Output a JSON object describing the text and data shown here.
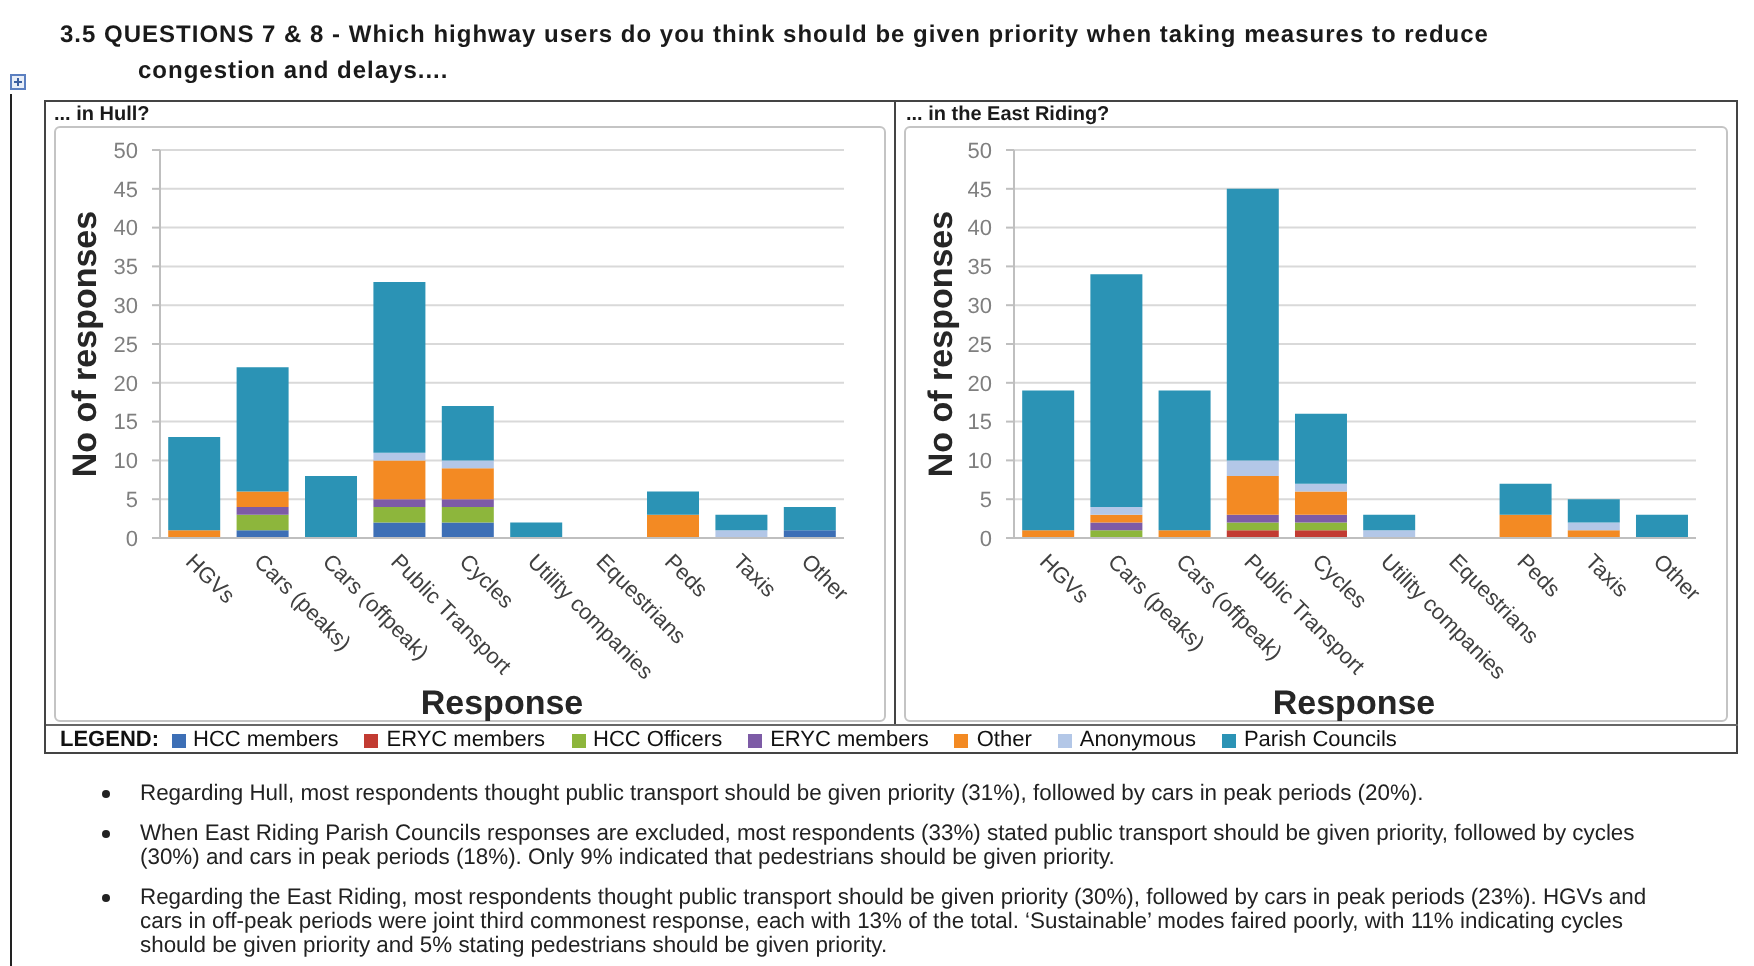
{
  "chart_data": [
    {
      "type": "other",
      "title": "3.5 QUESTIONS 7 & 8 - Which highway users do you think should be given priority when taking measures to reduce congestion and delays...."
    },
    {
      "type": "bar",
      "title": "... in Hull?",
      "xlabel": "Response",
      "ylabel": "No of responses",
      "categories": [
        "HGVs",
        "Cars (peaks)",
        "Cars (offpeak)",
        "Public Transport",
        "Cycles",
        "Utility companies",
        "Equestrians",
        "Peds",
        "Taxis",
        "Other"
      ],
      "stacked": true,
      "ylim": [
        0,
        50
      ],
      "yticks": [
        0,
        5,
        10,
        15,
        20,
        25,
        30,
        35,
        40,
        45,
        50
      ],
      "grid": "y",
      "legend": "bottom",
      "legend_title": "LEGEND:",
      "series": [
        {
          "name": "HCC members",
          "color": "#3d6fb6",
          "values": [
            0,
            1,
            0,
            2,
            2,
            0,
            0,
            0,
            0,
            1
          ]
        },
        {
          "name": "ERYC members",
          "color": "#c23b32",
          "values": [
            0,
            0,
            0,
            0,
            0,
            0,
            0,
            0,
            0,
            0
          ]
        },
        {
          "name": "HCC Officers",
          "color": "#8db63c",
          "values": [
            0,
            2,
            0,
            2,
            2,
            0,
            0,
            0,
            0,
            0
          ]
        },
        {
          "name": "ERYC members",
          "color": "#7d5ba6",
          "values": [
            0,
            1,
            0,
            1,
            1,
            0,
            0,
            0,
            0,
            0
          ]
        },
        {
          "name": "Other",
          "color": "#f38a23",
          "values": [
            1,
            2,
            0,
            5,
            4,
            0,
            0,
            3,
            0,
            0
          ]
        },
        {
          "name": "Anonymous",
          "color": "#b3c7e7",
          "values": [
            0,
            0,
            0,
            1,
            1,
            0,
            0,
            0,
            1,
            0
          ]
        },
        {
          "name": "Parish Councils",
          "color": "#2b93b5",
          "values": [
            12,
            16,
            8,
            22,
            7,
            2,
            0,
            3,
            2,
            3
          ]
        }
      ]
    },
    {
      "type": "bar",
      "title": "... in the East Riding?",
      "xlabel": "Response",
      "ylabel": "No of responses",
      "categories": [
        "HGVs",
        "Cars (peaks)",
        "Cars (offpeak)",
        "Public Transport",
        "Cycles",
        "Utility companies",
        "Equestrians",
        "Peds",
        "Taxis",
        "Other"
      ],
      "stacked": true,
      "ylim": [
        0,
        50
      ],
      "yticks": [
        0,
        5,
        10,
        15,
        20,
        25,
        30,
        35,
        40,
        45,
        50
      ],
      "grid": "y",
      "series": [
        {
          "color": "#3d6fb6",
          "values": [
            0,
            0,
            0,
            0,
            0,
            0,
            0,
            0,
            0,
            0
          ]
        },
        {
          "color": "#c23b32",
          "values": [
            0,
            0,
            0,
            1,
            1,
            0,
            0,
            0,
            0,
            0
          ]
        },
        {
          "color": "#8db63c",
          "values": [
            0,
            1,
            0,
            1,
            1,
            0,
            0,
            0,
            0,
            0
          ]
        },
        {
          "color": "#7d5ba6",
          "values": [
            0,
            1,
            0,
            1,
            1,
            0,
            0,
            0,
            0,
            0
          ]
        },
        {
          "color": "#f38a23",
          "values": [
            1,
            1,
            1,
            5,
            3,
            0,
            0,
            3,
            1,
            0
          ]
        },
        {
          "color": "#b3c7e7",
          "values": [
            0,
            1,
            0,
            2,
            1,
            1,
            0,
            0,
            1,
            0
          ]
        },
        {
          "color": "#2b93b5",
          "values": [
            18,
            30,
            18,
            35,
            9,
            2,
            0,
            4,
            3,
            3
          ]
        }
      ]
    },
    {
      "type": "other",
      "annotations": [
        "Regarding Hull, most respondents thought public transport should be given priority (31%), followed by cars in peak periods (20%).",
        "When East Riding Parish Councils responses are excluded, most respondents (33%) stated public transport should be given priority, followed by cycles (30%) and cars in peak periods (18%). Only 9% indicated that pedestrians should be given priority.",
        "Regarding the East Riding, most respondents thought public transport should be given priority (30%), followed by cars in peak periods (23%). HGVs and cars in off-peak periods were joint third commonest response, each with 13% of the total. ‘Sustainable’ modes faired poorly, with 11% indicating cycles should be given priority and 5% stating pedestrians should be given priority."
      ]
    }
  ]
}
